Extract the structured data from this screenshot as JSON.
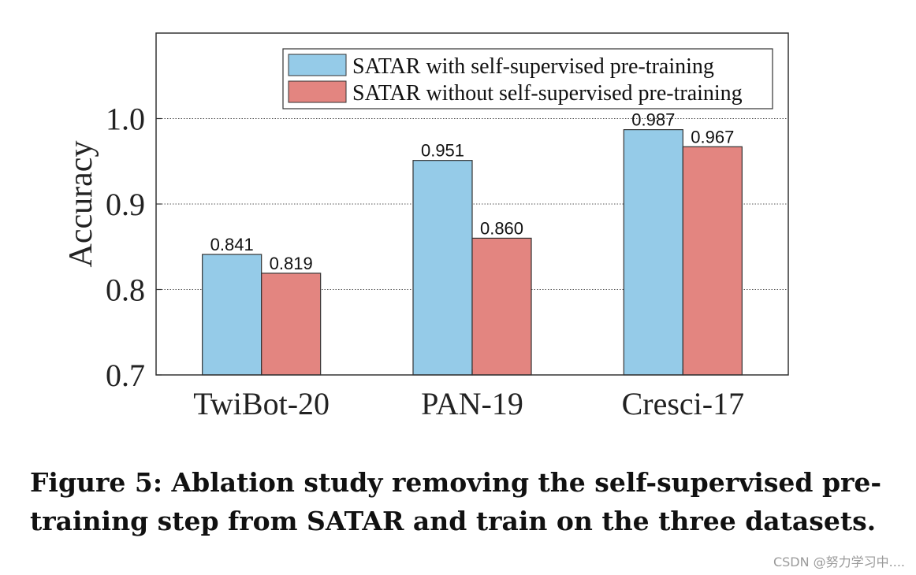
{
  "chart_data": {
    "type": "bar",
    "categories": [
      "TwiBot-20",
      "PAN-19",
      "Cresci-17"
    ],
    "series": [
      {
        "name": "SATAR with self-supervised pre-training",
        "values": [
          0.841,
          0.951,
          0.987
        ],
        "labels": [
          "0.841",
          "0.951",
          "0.987"
        ],
        "color": "#95cbe8"
      },
      {
        "name": "SATAR without self-supervised pre-training",
        "values": [
          0.819,
          0.86,
          0.967
        ],
        "labels": [
          "0.819",
          "0.860",
          "0.967"
        ],
        "color": "#e38580"
      }
    ],
    "ylabel": "Accuracy",
    "ylim": [
      0.7,
      1.1
    ],
    "yticks": [
      0.7,
      0.8,
      0.9,
      1.0
    ],
    "ytick_labels": [
      "0.7",
      "0.8",
      "0.9",
      "1.0"
    ],
    "grid": true,
    "legend_position": "top-right"
  },
  "caption": "Figure 5: Ablation study removing the self-supervised pre-training step from SATAR and train on the three datasets.",
  "watermark": "CSDN @努力学习中...."
}
